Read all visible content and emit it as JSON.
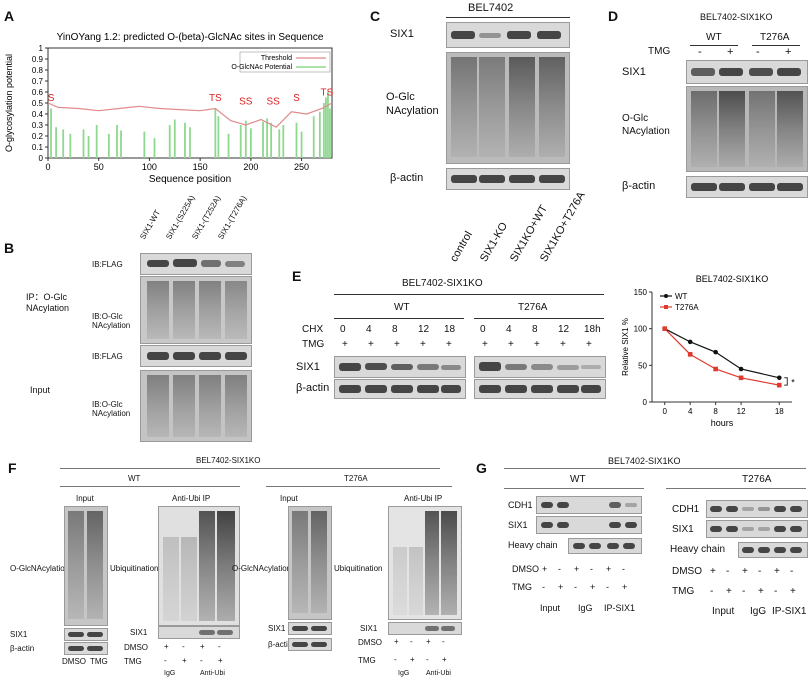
{
  "panels": {
    "A": {
      "label": "A",
      "chart_data": {
        "type": "bar",
        "title": "YinOYang 1.2: predicted O-(beta)-GlcNAc sites in Sequence",
        "xlabel": "Sequence position",
        "ylabel": "O-glycosylation potential",
        "xlim": [
          0,
          280
        ],
        "ylim": [
          0,
          1
        ],
        "xticks": [
          "0",
          "50",
          "100",
          "150",
          "200",
          "250"
        ],
        "yticks": [
          "0",
          "0.1",
          "0.2",
          "0.3",
          "0.4",
          "0.5",
          "0.6",
          "0.7",
          "0.8",
          "0.9",
          "1"
        ],
        "legend": {
          "position": "top-right",
          "threshold": "Threshold",
          "potential": "O-GlcNAc Potential"
        },
        "threshold": {
          "x": [
            0,
            10,
            30,
            50,
            70,
            90,
            110,
            130,
            150,
            165,
            180,
            195,
            210,
            225,
            240,
            255,
            270,
            280
          ],
          "y": [
            0.5,
            0.46,
            0.45,
            0.43,
            0.45,
            0.47,
            0.45,
            0.44,
            0.43,
            0.45,
            0.34,
            0.3,
            0.35,
            0.28,
            0.42,
            0.4,
            0.45,
            0.5
          ]
        },
        "bars": {
          "x": [
            3,
            8,
            15,
            22,
            35,
            40,
            48,
            60,
            68,
            72,
            95,
            105,
            120,
            125,
            135,
            140,
            165,
            168,
            178,
            190,
            195,
            200,
            212,
            216,
            220,
            228,
            232,
            245,
            250,
            262,
            268,
            272,
            274,
            276,
            278
          ],
          "y": [
            0.45,
            0.28,
            0.26,
            0.22,
            0.26,
            0.2,
            0.3,
            0.22,
            0.3,
            0.25,
            0.24,
            0.18,
            0.3,
            0.35,
            0.32,
            0.28,
            0.45,
            0.38,
            0.22,
            0.3,
            0.34,
            0.27,
            0.33,
            0.36,
            0.32,
            0.26,
            0.3,
            0.32,
            0.24,
            0.38,
            0.42,
            0.5,
            0.55,
            0.6,
            0.45
          ]
        },
        "annotations": [
          {
            "text": "S",
            "x": 3,
            "y": 0.5
          },
          {
            "text": "TS",
            "x": 165,
            "y": 0.5
          },
          {
            "text": "SS",
            "x": 195,
            "y": 0.47
          },
          {
            "text": "SS",
            "x": 222,
            "y": 0.47
          },
          {
            "text": "S",
            "x": 245,
            "y": 0.5
          },
          {
            "text": "TS",
            "x": 275,
            "y": 0.55
          }
        ]
      }
    },
    "B": {
      "label": "B",
      "lanes": [
        "SIX1-WT",
        "SIX1-(S225A)",
        "SIX1-(T252A)",
        "SIX1-(T276A)"
      ],
      "ip_label": "IP：O-Glc NAcylation",
      "input_label": "Input",
      "ib_flag": "IB:FLAG",
      "ib_oglc": "IB:O-Glc NAcylation"
    },
    "C": {
      "label": "C",
      "cell_line": "BEL7402",
      "six1": "SIX1",
      "oglc": "O-Glc NAcylation",
      "actin": "β-actin",
      "lanes": [
        "control",
        "SIX1-KO",
        "SIX1KO+WT",
        "SIX1KO+T276A"
      ]
    },
    "D": {
      "label": "D",
      "cell_line": "BEL7402-SIX1KO",
      "wt": "WT",
      "mut": "T276A",
      "tmg_label": "TMG",
      "tmg_signs": [
        "-",
        "+",
        "-",
        "+"
      ],
      "six1": "SIX1",
      "oglc": "O-Glc NAcylation",
      "actin": "β-actin"
    },
    "E": {
      "label": "E",
      "cell_line": "BEL7402-SIX1KO",
      "wt": "WT",
      "mut": "T276A",
      "chx_label": "CHX",
      "tmg_label": "TMG",
      "chx_wt": [
        "0",
        "4",
        "8",
        "12",
        "18"
      ],
      "chx_mut": [
        "0",
        "4",
        "8",
        "12",
        "18h"
      ],
      "plus": "+",
      "six1": "SIX1",
      "actin": "β-actin",
      "chart_data": {
        "type": "line",
        "title": "BEL7402-SIX1KO",
        "xlabel": "hours",
        "ylabel": "Relative SIX1 %",
        "x": [
          0,
          4,
          8,
          12,
          18
        ],
        "xlim": [
          -2,
          20
        ],
        "ylim": [
          0,
          150
        ],
        "xticks": [
          "0",
          "4",
          "8",
          "12",
          "18"
        ],
        "yticks": [
          "0",
          "50",
          "100",
          "150"
        ],
        "legend": "top-left",
        "significance": "*",
        "series": [
          {
            "name": "WT",
            "color": "#111111",
            "values": [
              100,
              82,
              68,
              45,
              33
            ]
          },
          {
            "name": "T276A",
            "color": "#e03a2f",
            "values": [
              100,
              65,
              45,
              33,
              23
            ]
          }
        ]
      }
    },
    "F": {
      "label": "F",
      "cell_line": "BEL7402-SIX1KO",
      "wt": "WT",
      "mut": "T276A",
      "input": "Input",
      "anti_ubi_ip": "Anti-Ubi IP",
      "oglc": "O-GlcNAcylation",
      "ubiq": "Ubiquitination",
      "six1": "SIX1",
      "actin": "β-actin",
      "dmso": "DMSO",
      "tmg": "TMG",
      "igg": "IgG",
      "anti_ubi": "Anti-Ubi",
      "dmso_signs": [
        "+",
        "-",
        "+",
        "-"
      ],
      "tmg_signs": [
        "-",
        "+",
        "-",
        "+"
      ]
    },
    "G": {
      "label": "G",
      "cell_line": "BEL7402-SIX1KO",
      "wt": "WT",
      "mut": "T276A",
      "cdh1": "CDH1",
      "six1": "SIX1",
      "heavy": "Heavy chain",
      "dmso": "DMSO",
      "tmg": "TMG",
      "input": "Input",
      "igg": "IgG",
      "ip_six1": "IP-SIX1",
      "dmso_signs": [
        "+",
        "-",
        "+",
        "-",
        "+",
        "-"
      ],
      "tmg_signs": [
        "-",
        "+",
        "-",
        "+",
        "-",
        "+"
      ]
    }
  }
}
